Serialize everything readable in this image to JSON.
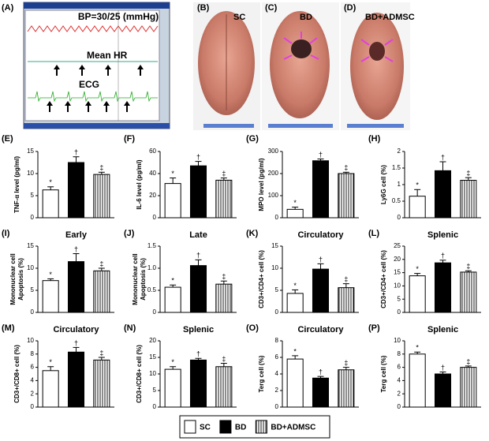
{
  "image_panels": [
    {
      "label": "(A)",
      "texts": [
        "BP=30/25 (mmHg)",
        "Mean HR",
        "ECG"
      ]
    },
    {
      "label": "(B)",
      "texts": [
        "SC"
      ]
    },
    {
      "label": "(C)",
      "texts": [
        "BD"
      ]
    },
    {
      "label": "(D)",
      "texts": [
        "BD+ADMSC"
      ]
    }
  ],
  "legend": [
    {
      "name": "SC",
      "fill": "#ffffff"
    },
    {
      "name": "BD",
      "fill": "#000000"
    },
    {
      "name": "BD+ADMSC",
      "fill": "hatch"
    }
  ],
  "chart_data": [
    {
      "type": "bar",
      "panel": "(E)",
      "ylabel": [
        "TNF-α level (pg/ml)"
      ],
      "values": [
        6.3,
        12.5,
        9.8
      ],
      "errors": [
        0.7,
        1.3,
        0.5
      ],
      "annotations": [
        "*",
        "†",
        "‡"
      ],
      "ylim": [
        0,
        15
      ],
      "yticks": [
        0,
        5,
        10,
        15
      ]
    },
    {
      "type": "bar",
      "panel": "(F)",
      "ylabel": [
        "IL-6 level (pg/ml)"
      ],
      "values": [
        31,
        47,
        34
      ],
      "errors": [
        5,
        4,
        2
      ],
      "annotations": [
        "*",
        "†",
        "‡"
      ],
      "ylim": [
        0,
        60
      ],
      "yticks": [
        0,
        20,
        40,
        60
      ]
    },
    {
      "type": "bar",
      "panel": "(G)",
      "ylabel": [
        "MPO level (pg/ml)"
      ],
      "values": [
        38,
        258,
        200
      ],
      "errors": [
        10,
        8,
        6
      ],
      "annotations": [
        "*",
        "†",
        "‡"
      ],
      "ylim": [
        0,
        300
      ],
      "yticks": [
        0,
        100,
        200,
        300
      ]
    },
    {
      "type": "bar",
      "panel": "(H)",
      "ylabel": [
        "Ly6G cell (%)"
      ],
      "values": [
        0.65,
        1.42,
        1.13
      ],
      "errors": [
        0.2,
        0.27,
        0.08
      ],
      "annotations": [
        "*",
        "†",
        "‡"
      ],
      "ylim": [
        0,
        2
      ],
      "yticks": [
        0,
        0.5,
        1,
        1.5,
        2
      ]
    },
    {
      "type": "bar",
      "panel": "(I)",
      "title": "Early",
      "ylabel": [
        "Mononuclear cell",
        "Apoptosis (%)"
      ],
      "values": [
        7.2,
        11.5,
        9.4
      ],
      "errors": [
        0.4,
        1.8,
        0.6
      ],
      "annotations": [
        "*",
        "†",
        "‡"
      ],
      "ylim": [
        0,
        15
      ],
      "yticks": [
        0,
        5,
        10,
        15
      ]
    },
    {
      "type": "bar",
      "panel": "(J)",
      "title": "Late",
      "ylabel": [
        "Mononuclear cell",
        "Apoptosis (%)"
      ],
      "values": [
        0.57,
        1.06,
        0.64
      ],
      "errors": [
        0.05,
        0.13,
        0.07
      ],
      "annotations": [
        "*",
        "†",
        "‡"
      ],
      "ylim": [
        0,
        1.5
      ],
      "yticks": [
        0,
        0.5,
        {
          "value": 1,
          "label": "1.0"
        },
        1.5
      ]
    },
    {
      "type": "bar",
      "panel": "(K)",
      "title": "Circulatory",
      "ylabel": [
        "CD3+/CD4+ cell (%)"
      ],
      "values": [
        4.3,
        9.8,
        5.6
      ],
      "errors": [
        0.8,
        1.2,
        0.9
      ],
      "annotations": [
        "*",
        "†",
        "‡"
      ],
      "ylim": [
        0,
        15
      ],
      "yticks": [
        0,
        5,
        10,
        15
      ]
    },
    {
      "type": "bar",
      "panel": "(L)",
      "title": "Splenic",
      "ylabel": [
        "CD3+/CD4+ cell (%)"
      ],
      "values": [
        13.8,
        18.7,
        15.2
      ],
      "errors": [
        0.9,
        1.0,
        0.5
      ],
      "annotations": [
        "*",
        "†",
        "‡"
      ],
      "ylim": [
        0,
        25
      ],
      "yticks": [
        0,
        5,
        10,
        15,
        20,
        25
      ]
    },
    {
      "type": "bar",
      "panel": "(M)",
      "title": "Circulatory",
      "ylabel": [
        "CD3+/CD8+ cell (%)"
      ],
      "values": [
        5.5,
        8.3,
        7.1
      ],
      "errors": [
        0.6,
        0.7,
        0.4
      ],
      "annotations": [
        "*",
        "†",
        "‡"
      ],
      "ylim": [
        0,
        10
      ],
      "yticks": [
        0,
        2,
        4,
        6,
        8,
        10
      ]
    },
    {
      "type": "bar",
      "panel": "(N)",
      "title": "Splenic",
      "ylabel": [
        "CD3+/CD8+ cell (%)"
      ],
      "values": [
        11.4,
        14.2,
        12.2
      ],
      "errors": [
        0.8,
        0.5,
        1.0
      ],
      "annotations": [
        "*",
        "†",
        "‡"
      ],
      "ylim": [
        0,
        20
      ],
      "yticks": [
        0,
        5,
        10,
        15,
        20
      ]
    },
    {
      "type": "bar",
      "panel": "(O)",
      "title": "Circulatory",
      "ylabel": [
        "Terg cell (%)"
      ],
      "values": [
        5.8,
        3.5,
        4.5
      ],
      "errors": [
        0.4,
        0.2,
        0.3
      ],
      "annotations": [
        "*",
        "†",
        "‡"
      ],
      "ylim": [
        0,
        8
      ],
      "yticks": [
        0,
        2,
        4,
        6,
        8
      ]
    },
    {
      "type": "bar",
      "panel": "(P)",
      "title": "Splenic",
      "ylabel": [
        "Terg cell (%)"
      ],
      "values": [
        8.0,
        5.0,
        6.0
      ],
      "errors": [
        0.3,
        0.3,
        0.2
      ],
      "annotations": [
        "*",
        "†",
        "‡"
      ],
      "ylim": [
        0,
        10
      ],
      "yticks": [
        0,
        2,
        4,
        6,
        8,
        10
      ]
    }
  ]
}
